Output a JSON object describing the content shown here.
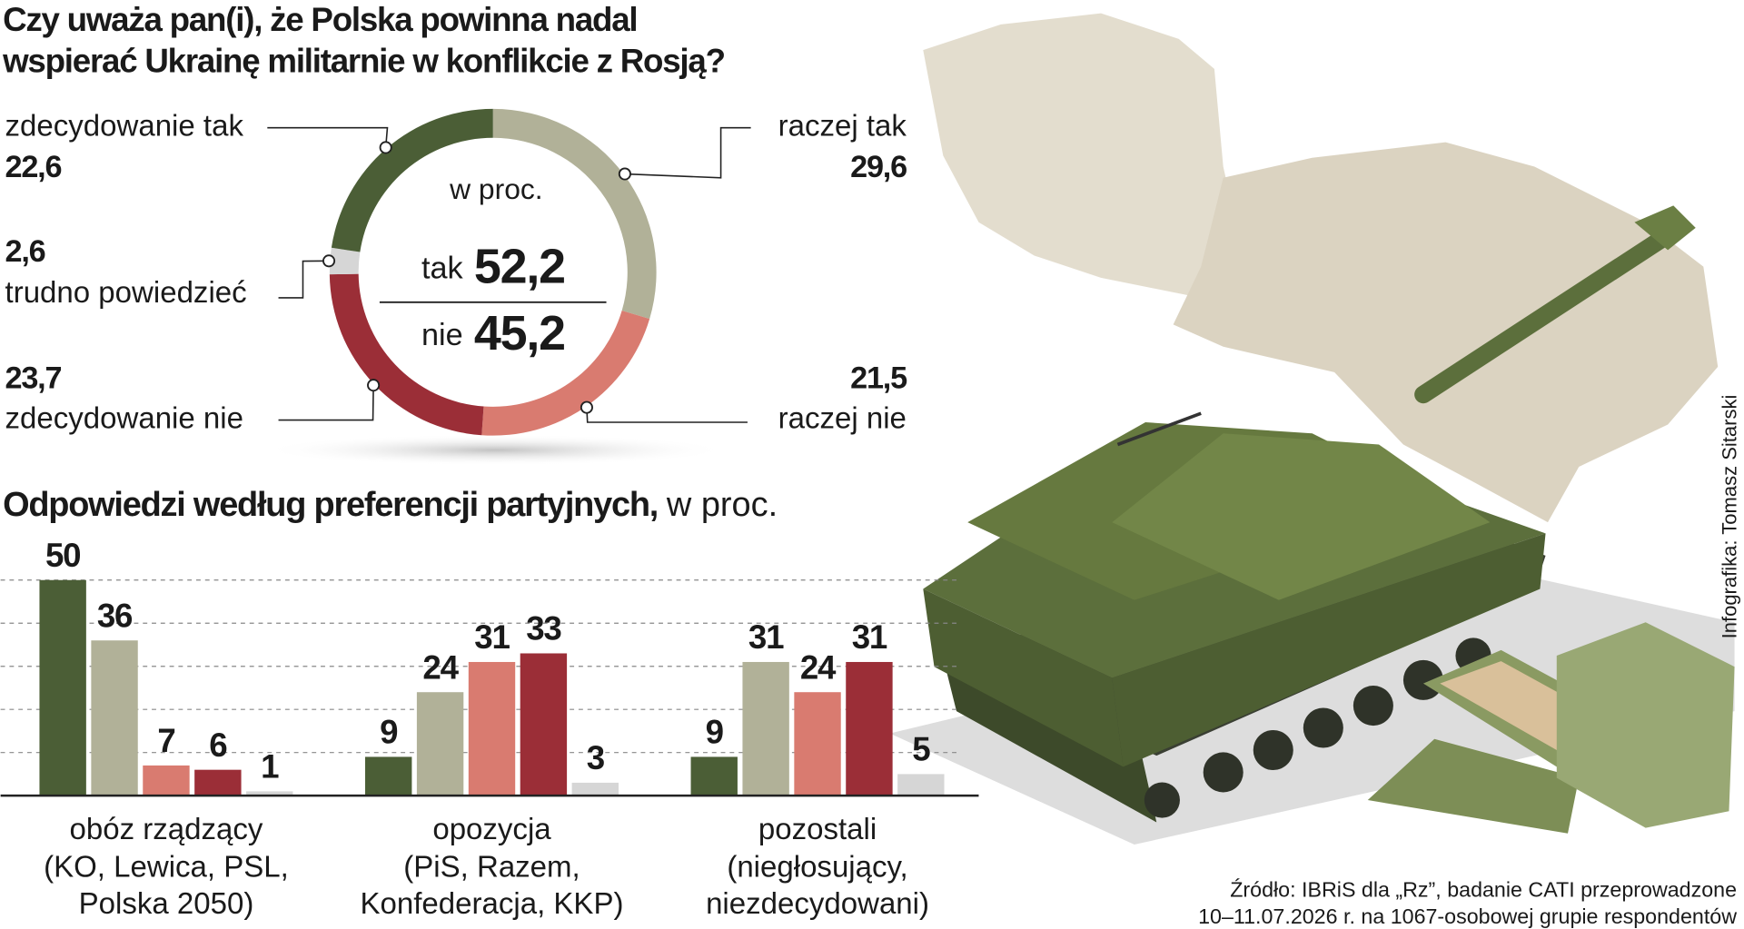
{
  "title_lines": [
    "Czy uważa pan(i), że Polska powinna nadal",
    "wspierać Ukrainę militarnie w konflikcie z Rosją?"
  ],
  "chart_data": [
    {
      "type": "donut",
      "center_label": "w proc.",
      "categories": [
        "raczej tak",
        "raczej nie",
        "zdecydowanie nie",
        "trudno powiedzieć",
        "zdecydowanie tak"
      ],
      "values": [
        29.6,
        21.5,
        23.7,
        2.6,
        22.6
      ],
      "value_labels": [
        "29,6",
        "21,5",
        "23,7",
        "2,6",
        "22,6"
      ],
      "colors": [
        "#b1b198",
        "#d97b70",
        "#9b2e37",
        "#d6d6d6",
        "#4b5e36"
      ],
      "totals": [
        {
          "label": "tak",
          "value": 52.2,
          "value_label": "52,2",
          "color": "#4b5e36"
        },
        {
          "label": "nie",
          "value": 45.2,
          "value_label": "45,2",
          "color": "#9b2e37"
        }
      ]
    },
    {
      "type": "grouped-bar",
      "title": "Odpowiedzi według preferencji partyjnych,",
      "subtitle": "w proc.",
      "categories": [
        "obóz rządzący",
        "opozycja",
        "pozostali"
      ],
      "category_notes": [
        [
          "(KO, Lewica, PSL,",
          "Polska 2050)"
        ],
        [
          "(PiS, Razem,",
          "Konfederacja, KKP)"
        ],
        [
          "(niegłosujący,",
          "niezdecydowani)"
        ]
      ],
      "series": [
        {
          "color": "#4b5e36",
          "values": [
            50,
            9,
            9
          ]
        },
        {
          "color": "#b1b198",
          "values": [
            36,
            24,
            31
          ]
        },
        {
          "color": "#d97b70",
          "values": [
            7,
            31,
            24
          ]
        },
        {
          "color": "#9b2e37",
          "values": [
            6,
            33,
            31
          ]
        },
        {
          "color": "#d6d6d6",
          "values": [
            1,
            3,
            5
          ]
        }
      ],
      "ylim": [
        0,
        50
      ],
      "yticks": [
        10,
        20,
        30,
        40,
        50
      ],
      "grid": true,
      "ytick_labels": false
    }
  ],
  "source_lines": [
    "Źródło: IBRiS dla „Rz”, badanie CATI przeprowadzone",
    "10–11.07.2026 r. na 1067-osobowej grupie respondentów"
  ],
  "credit": "Infografika: Tomasz Sitarski"
}
